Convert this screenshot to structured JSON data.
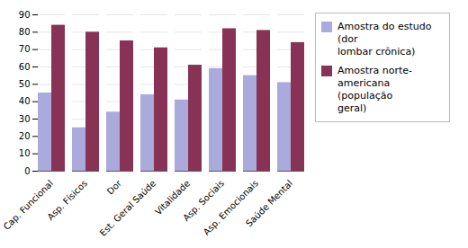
{
  "chart_data": {
    "type": "bar",
    "categories": [
      "Cap. Funcional",
      "Asp. Físicos",
      "Dor",
      "Est. Geral Saúde",
      "Vitalidade",
      "Asp. Sociais",
      "Asp. Emocionais",
      "Saúde Mental"
    ],
    "series": [
      {
        "name": "Amostra do estudo (dor\nlombar crônica)",
        "color": "#aaaadd",
        "values": [
          45,
          25,
          34,
          44,
          41,
          59,
          55,
          51
        ]
      },
      {
        "name": "Amostra norte-\namericana (população\ngeral)",
        "color": "#883355",
        "values": [
          84,
          80,
          75,
          71,
          61,
          82,
          81,
          74
        ]
      }
    ],
    "ylim": [
      0,
      90
    ],
    "yticks": [
      0,
      10,
      20,
      30,
      40,
      50,
      60,
      70,
      80,
      90
    ],
    "grid": true,
    "legend": "right"
  }
}
